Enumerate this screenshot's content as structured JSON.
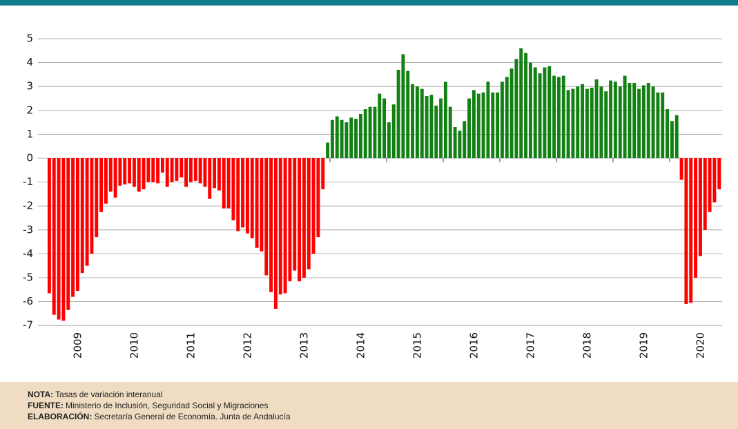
{
  "chart_data": {
    "type": "bar",
    "categories": [
      null,
      null,
      null,
      null,
      null,
      null,
      "2009",
      null,
      null,
      null,
      null,
      null,
      null,
      null,
      null,
      null,
      null,
      null,
      "2010",
      null,
      null,
      null,
      null,
      null,
      null,
      null,
      null,
      null,
      null,
      null,
      "2011",
      null,
      null,
      null,
      null,
      null,
      null,
      null,
      null,
      null,
      null,
      null,
      "2012",
      null,
      null,
      null,
      null,
      null,
      null,
      null,
      null,
      null,
      null,
      null,
      "2013",
      null,
      null,
      null,
      null,
      null,
      null,
      null,
      null,
      null,
      null,
      null,
      "2014",
      null,
      null,
      null,
      null,
      null,
      null,
      null,
      null,
      null,
      null,
      null,
      "2015",
      null,
      null,
      null,
      null,
      null,
      null,
      null,
      null,
      null,
      null,
      null,
      "2016",
      null,
      null,
      null,
      null,
      null,
      null,
      null,
      null,
      null,
      null,
      null,
      "2017",
      null,
      null,
      null,
      null,
      null,
      null,
      null,
      null,
      null,
      null,
      null,
      "2018",
      null,
      null,
      null,
      null,
      null,
      null,
      null,
      null,
      null,
      null,
      null,
      "2019",
      null,
      null,
      null,
      null,
      null,
      null,
      null,
      null,
      null,
      null,
      null,
      "2020",
      null,
      null,
      null,
      null
    ],
    "values": [
      -5.65,
      -6.55,
      -6.75,
      -6.8,
      -6.35,
      -5.8,
      -5.55,
      -4.8,
      -4.5,
      -4.0,
      -3.3,
      -2.25,
      -1.9,
      -1.4,
      -1.65,
      -1.15,
      -1.1,
      -1.05,
      -1.2,
      -1.4,
      -1.3,
      -1.0,
      -1.0,
      -1.05,
      -0.6,
      -1.2,
      -1.0,
      -0.95,
      -0.8,
      -1.2,
      -1.0,
      -0.95,
      -1.05,
      -1.2,
      -1.7,
      -1.25,
      -1.35,
      -2.1,
      -2.1,
      -2.6,
      -3.05,
      -2.9,
      -3.15,
      -3.35,
      -3.75,
      -3.9,
      -4.9,
      -5.6,
      -6.3,
      -5.7,
      -5.65,
      -5.15,
      -4.7,
      -5.15,
      -5.0,
      -4.65,
      -4.0,
      -3.3,
      -1.3,
      0.65,
      1.6,
      1.75,
      1.6,
      1.5,
      1.7,
      1.65,
      1.85,
      2.05,
      2.15,
      2.15,
      2.7,
      2.5,
      1.5,
      2.25,
      3.7,
      4.35,
      3.65,
      3.1,
      3.0,
      2.9,
      2.6,
      2.65,
      2.2,
      2.5,
      3.2,
      2.15,
      1.3,
      1.15,
      1.55,
      2.5,
      2.85,
      2.7,
      2.75,
      3.2,
      2.75,
      2.75,
      3.2,
      3.4,
      3.75,
      4.15,
      4.6,
      4.4,
      4.0,
      3.8,
      3.55,
      3.8,
      3.85,
      3.45,
      3.4,
      3.45,
      2.85,
      2.9,
      3.0,
      3.1,
      2.9,
      2.95,
      3.3,
      3.0,
      2.8,
      3.25,
      3.2,
      3.0,
      3.45,
      3.15,
      3.15,
      2.9,
      3.05,
      3.15,
      3.0,
      2.75,
      2.75,
      2.05,
      1.55,
      1.8,
      -0.9,
      -6.1,
      -6.05,
      -5.0,
      -4.1,
      -3.0,
      -2.25,
      -1.85,
      -1.3
    ],
    "positive_color": "#138013",
    "negative_color": "#ff0000",
    "ylim": [
      -7.5,
      5.5
    ],
    "yticks": [
      -7,
      -6,
      -5,
      -4,
      -3,
      -2,
      -1,
      0,
      1,
      2,
      3,
      4,
      5
    ],
    "grid": true,
    "notes": [
      {
        "label": "NOTA:",
        "text": "Tasas de variación interanual"
      },
      {
        "label": "FUENTE:",
        "text": "Ministerio de Inclusión, Seguridad Social y Migraciones"
      },
      {
        "label": "ELABORACIÓN:",
        "text": "Secretaría General de Economía. Junta de Andalucía"
      }
    ]
  }
}
